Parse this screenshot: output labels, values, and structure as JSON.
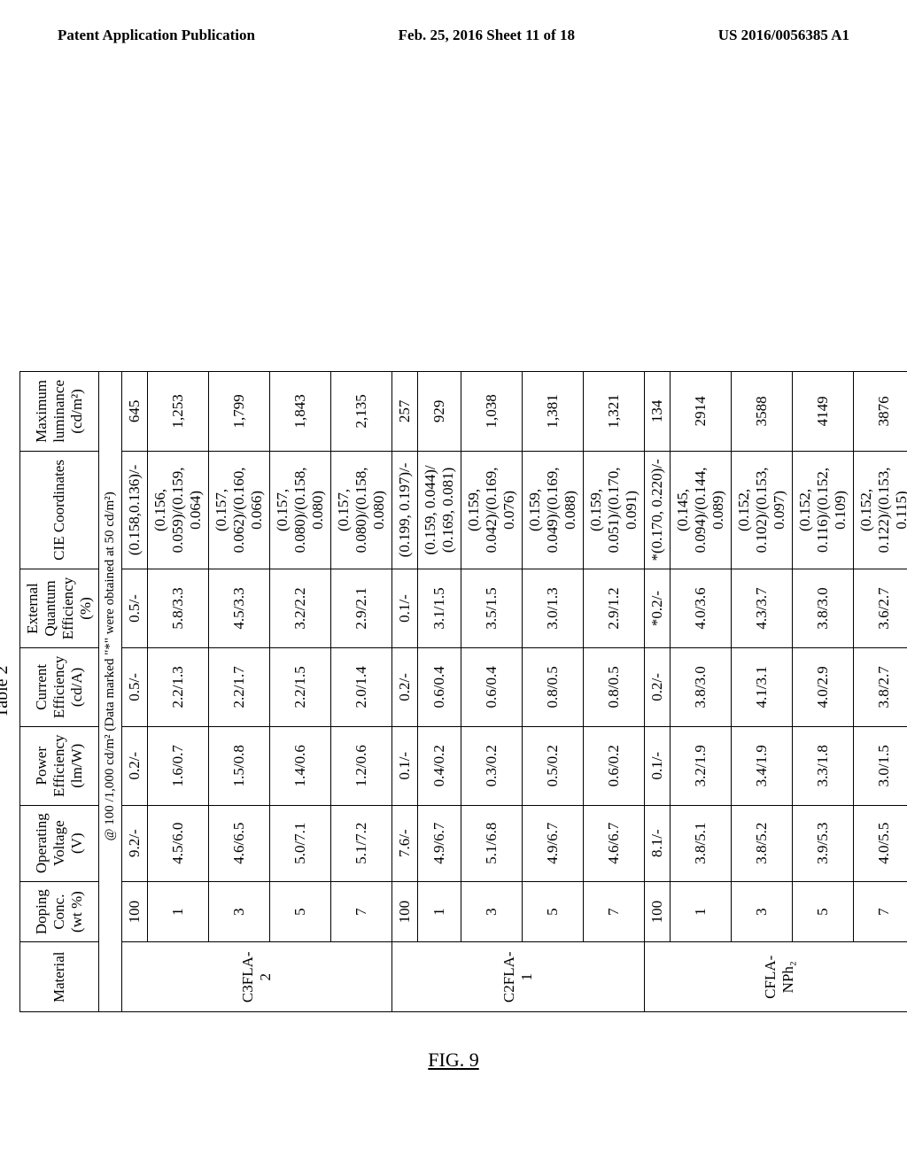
{
  "header": {
    "left": "Patent Application Publication",
    "center": "Feb. 25, 2016  Sheet 11 of 18",
    "right": "US 2016/0056385 A1"
  },
  "table": {
    "title": "Table 2",
    "columns": {
      "material": "Material",
      "doping": "Doping Conc. (wt %)",
      "voltage": "Operating Voltage (V)",
      "power": "Power Efficiency (lm/W)",
      "current": "Current Efficiency (cd/A)",
      "quantum": "External Quantum Efficiency (%)",
      "cie": "CIE Coordinates",
      "luminance": "Maximum luminance (cd/m²)"
    },
    "subheader": "@ 100 /1,000  cd/m² (Data marked \"*\" were obtained at 50 cd/m²)",
    "groups": [
      {
        "material": "C3FLA-2",
        "rows": [
          {
            "doping": "100",
            "voltage": "9.2/-",
            "power": "0.2/-",
            "current": "0.5/-",
            "quantum": "0.5/-",
            "cie": "(0.158,0.136)/-",
            "lum": "645"
          },
          {
            "doping": "1",
            "voltage": "4.5/6.0",
            "power": "1.6/0.7",
            "current": "2.2/1.3",
            "quantum": "5.8/3.3",
            "cie": "(0.156, 0.059)/(0.159, 0.064)",
            "lum": "1,253"
          },
          {
            "doping": "3",
            "voltage": "4.6/6.5",
            "power": "1.5/0.8",
            "current": "2.2/1.7",
            "quantum": "4.5/3.3",
            "cie": "(0.157, 0.062)/(0.160, 0.066)",
            "lum": "1,799"
          },
          {
            "doping": "5",
            "voltage": "5.0/7.1",
            "power": "1.4/0.6",
            "current": "2.2/1.5",
            "quantum": "3.2/2.2",
            "cie": "(0.157, 0.080)/(0.158, 0.080)",
            "lum": "1,843"
          },
          {
            "doping": "7",
            "voltage": "5.1/7.2",
            "power": "1.2/0.6",
            "current": "2.0/1.4",
            "quantum": "2.9/2.1",
            "cie": "(0.157, 0.080)/(0.158, 0.080)",
            "lum": "2,135"
          }
        ]
      },
      {
        "material": "C2FLA-1",
        "rows": [
          {
            "doping": "100",
            "voltage": "7.6/-",
            "power": "0.1/-",
            "current": "0.2/-",
            "quantum": "0.1/-",
            "cie": "(0.199, 0.197)/-",
            "lum": "257"
          },
          {
            "doping": "1",
            "voltage": "4.9/6.7",
            "power": "0.4/0.2",
            "current": "0.6/0.4",
            "quantum": "3.1/1.5",
            "cie": "(0.159, 0.044)/ (0.169, 0.081)",
            "lum": "929"
          },
          {
            "doping": "3",
            "voltage": "5.1/6.8",
            "power": "0.3/0.2",
            "current": "0.6/0.4",
            "quantum": "3.5/1.5",
            "cie": "(0.159, 0.042)/(0.169, 0.076)",
            "lum": "1,038"
          },
          {
            "doping": "5",
            "voltage": "4.9/6.7",
            "power": "0.5/0.2",
            "current": "0.8/0.5",
            "quantum": "3.0/1.3",
            "cie": "(0.159, 0.049)/(0.169, 0.088)",
            "lum": "1,381"
          },
          {
            "doping": "7",
            "voltage": "4.6/6.7",
            "power": "0.6/0.2",
            "current": "0.8/0.5",
            "quantum": "2.9/1.2",
            "cie": "(0.159, 0.051)/(0.170, 0.091)",
            "lum": "1,321"
          }
        ]
      },
      {
        "material": "CFLA-NPh₂",
        "rows": [
          {
            "doping": "100",
            "voltage": "8.1/-",
            "power": "0.1/-",
            "current": "0.2/-",
            "quantum": "*0.2/-",
            "cie": "*(0.170, 0.220)/-",
            "lum": "134"
          },
          {
            "doping": "1",
            "voltage": "3.8/5.1",
            "power": "3.2/1.9",
            "current": "3.8/3.0",
            "quantum": "4.0/3.6",
            "cie": "(0.145, 0.094)/(0.144, 0.089)",
            "lum": "2914"
          },
          {
            "doping": "3",
            "voltage": "3.8/5.2",
            "power": "3.4/1.9",
            "current": "4.1/3.1",
            "quantum": "4.3/3.7",
            "cie": "(0.152, 0.102)/(0.153, 0.097)",
            "lum": "3588"
          },
          {
            "doping": "5",
            "voltage": "3.9/5.3",
            "power": "3.3/1.8",
            "current": "4.0/2.9",
            "quantum": "3.8/3.0",
            "cie": "(0.152, 0.116)/(0.152, 0.109)",
            "lum": "4149"
          },
          {
            "doping": "7",
            "voltage": "4.0/5.5",
            "power": "3.0/1.5",
            "current": "3.8/2.7",
            "quantum": "3.6/2.7",
            "cie": "(0.152, 0.122)/(0.153, 0.115)",
            "lum": "3876"
          }
        ]
      }
    ]
  },
  "figure_caption": "FIG. 9"
}
